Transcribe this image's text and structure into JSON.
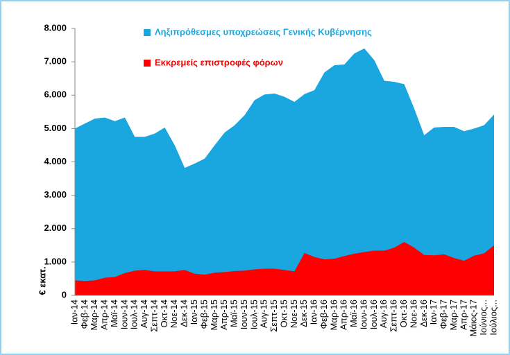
{
  "chart_data": {
    "type": "area",
    "y_label": "€ εκατ.",
    "categories": [
      "Ιαν-14",
      "Φεβ-14",
      "Μαρ-14",
      "Απρ-14",
      "Μαϊ-14",
      "Ιουν-14",
      "Ιουλ-14",
      "Αυγ-14",
      "Σεπτ-14",
      "Οκτ-14",
      "Νοε-14",
      "Δεκ-14",
      "Ιαν-15",
      "Φεβ-15",
      "Μαρ-15",
      "Απρ-15",
      "Μαϊ-15",
      "Ιουν-15",
      "Ιουλ-15",
      "Αυγ-15",
      "Σεπτ-15",
      "Οκτ-15",
      "Νοε-15",
      "Δεκ-15",
      "Ιαν-16",
      "Φεβ-16",
      "Μαρ-16",
      "Απρ-16",
      "Μαϊ-16",
      "Ιουν-16",
      "Ιουλ-16",
      "Αυγ-16",
      "Σεπτ-16",
      "Οκτ-16",
      "Νοε-16",
      "Δεκ-16",
      "Ιαν-17",
      "Φεβ-17",
      "Μαρ-17",
      "Απρ-17",
      "Μάιος-17",
      "Ιούνιος...",
      "Ιούλιος..."
    ],
    "series": [
      {
        "name": "Ληξιπρόθεσμες υποχρεώσεις Γενικής Κυβέρνησης",
        "color": "#1aa7e0",
        "values": [
          5000,
          5150,
          5300,
          5330,
          5220,
          5330,
          4750,
          4750,
          4850,
          5030,
          4500,
          3820,
          3950,
          4100,
          4500,
          4880,
          5100,
          5400,
          5850,
          6020,
          6050,
          5950,
          5800,
          6030,
          6150,
          6680,
          6900,
          6920,
          7250,
          7400,
          7050,
          6430,
          6400,
          6330,
          5600,
          4800,
          5030,
          5050,
          5050,
          4920,
          5000,
          5100,
          5420
        ]
      },
      {
        "name": "Εκκρεμείς επιστροφές φόρων",
        "color": "#ff0000",
        "values": [
          450,
          430,
          450,
          530,
          550,
          670,
          740,
          760,
          720,
          720,
          720,
          760,
          650,
          620,
          680,
          700,
          730,
          740,
          780,
          800,
          800,
          760,
          720,
          1270,
          1150,
          1080,
          1100,
          1180,
          1250,
          1300,
          1340,
          1340,
          1430,
          1600,
          1430,
          1210,
          1200,
          1230,
          1120,
          1040,
          1190,
          1260,
          1500
        ]
      }
    ],
    "ylim": [
      0,
      8000
    ],
    "yticks": [
      0,
      {
        "value": 1000,
        "label": "1.000"
      },
      {
        "value": 2000,
        "label": "2.000"
      },
      {
        "value": 3000,
        "label": "3.000"
      },
      {
        "value": 4000,
        "label": "4.000"
      },
      {
        "value": 5000,
        "label": "5.000"
      },
      {
        "value": 6000,
        "label": "6.000"
      },
      {
        "value": 7000,
        "label": "7.000"
      },
      {
        "value": 8000,
        "label": "8.000"
      }
    ]
  }
}
